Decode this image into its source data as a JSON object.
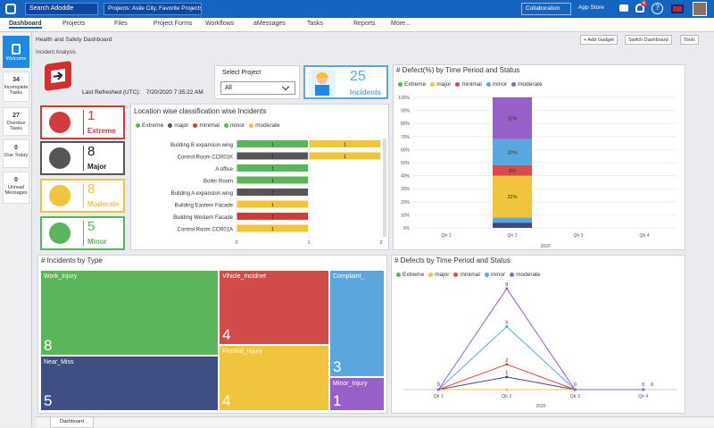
{
  "header": {
    "search_placeholder": "Search Adoddle",
    "projects": "Projects: Asile City, Favorite Projects",
    "collaboration": "Collaboration",
    "app_store": "App Store",
    "notif_count": "4"
  },
  "nav": [
    "Dashboard",
    "Projects",
    "Files",
    "Project Forms",
    "Workflows",
    "aMessages",
    "Tasks",
    "Reports",
    "More..."
  ],
  "sidebar": [
    {
      "num": "",
      "label": "Welcome"
    },
    {
      "num": "34",
      "label": "Incomplete Tasks"
    },
    {
      "num": "27",
      "label": "Overdue Tasks"
    },
    {
      "num": "0",
      "label": "Due Today"
    },
    {
      "num": "0",
      "label": "Unread Messages"
    }
  ],
  "page": {
    "breadcrumb": "Health and Safety Dashboard",
    "sub": "Incident Analysis",
    "add_gadget": "+ Add Gadget",
    "switch_dashboard": "Switch Dashboard",
    "tools": "Tools",
    "footer_tab": "Dashboard"
  },
  "refresh": {
    "label": "Last Refreshed (UTC):",
    "value": "7/20/2020 7:35:22 AM"
  },
  "select_project": {
    "label": "Select Project",
    "value": "All"
  },
  "incidents_count": {
    "value": "25",
    "label": "Incidents"
  },
  "kpis": [
    {
      "value": "1",
      "label": "Extreme",
      "color": "#d23b3b"
    },
    {
      "value": "8",
      "label": "Major",
      "color": "#555555"
    },
    {
      "value": "8",
      "label": "Moderate",
      "color": "#eec53b"
    },
    {
      "value": "5",
      "label": "Minor",
      "color": "#5bb55a"
    }
  ],
  "severity_colors": {
    "extreme": "#3a4a7a",
    "major": "#f0c43c",
    "minimal": "#d94a4a",
    "minor": "#5aa7e0",
    "moderate": "#9660c8"
  },
  "location_chart": {
    "title": "Location wise classification wise Incidents",
    "legend": [
      "Extreme",
      "major",
      "minimal",
      "minor",
      "moderate"
    ],
    "legend_colors": [
      "#5bb55a",
      "#555555",
      "#d23b3b",
      "#5bb55a",
      "#eec53b"
    ],
    "xticks": [
      "0",
      "1",
      "2"
    ],
    "rows": [
      {
        "label": "Building B expansion wing",
        "segs": [
          {
            "v": 1,
            "c": "#5bb55a"
          },
          {
            "v": 1,
            "c": "#eec53b"
          }
        ]
      },
      {
        "label": "Control Room CCR01K",
        "segs": [
          {
            "v": 1,
            "c": "#555555"
          },
          {
            "v": 1,
            "c": "#eec53b"
          }
        ]
      },
      {
        "label": "A office",
        "segs": [
          {
            "v": 1,
            "c": "#5bb55a"
          }
        ]
      },
      {
        "label": "Boiler Room",
        "segs": [
          {
            "v": 1,
            "c": "#5bb55a"
          }
        ]
      },
      {
        "label": "Building A expansion wing",
        "segs": [
          {
            "v": 1,
            "c": "#555555"
          }
        ]
      },
      {
        "label": "Building Eastern Facade",
        "segs": [
          {
            "v": 1,
            "c": "#eec53b"
          }
        ]
      },
      {
        "label": "Building Western Facade",
        "segs": [
          {
            "v": 1,
            "c": "#d23b3b"
          }
        ]
      },
      {
        "label": "Control Room CCR01A",
        "segs": [
          {
            "v": 1,
            "c": "#eec53b"
          }
        ]
      }
    ]
  },
  "defect_pct": {
    "title": "# Defect(%) by Time Period and Status",
    "legend": [
      "Extreme",
      "major",
      "minimal",
      "minor",
      "moderate"
    ],
    "yticks": [
      "100%",
      "90%",
      "80%",
      "70%",
      "60%",
      "50%",
      "40%",
      "30%",
      "20%",
      "10%",
      "0%"
    ],
    "xcats": [
      "Qtr 1",
      "Qtr 2",
      "Qtr 3",
      "Qtr 4"
    ],
    "year": "2020",
    "stack": [
      {
        "v": 4,
        "c": "#3a4a7a",
        "t": ""
      },
      {
        "v": 4,
        "c": "#5aa7e0",
        "t": ""
      },
      {
        "v": 32,
        "c": "#f0c43c",
        "t": "32%"
      },
      {
        "v": 8,
        "c": "#d94a4a",
        "t": "8%"
      },
      {
        "v": 20,
        "c": "#5aa7e0",
        "t": "20%"
      },
      {
        "v": 32,
        "c": "#9660c8",
        "t": "32%"
      }
    ]
  },
  "treemap": {
    "title": "# Incidents by Type",
    "items": [
      {
        "name": "Work_Injury",
        "value": "8",
        "color": "#5bb55a"
      },
      {
        "name": "Near_Miss",
        "value": "5",
        "color": "#3f4f86"
      },
      {
        "name": "Vihicle_Incidnet",
        "value": "4",
        "color": "#d24b4b"
      },
      {
        "name": "FirstAid_Injury",
        "value": "4",
        "color": "#f0c43c"
      },
      {
        "name": "Complaint_",
        "value": "3",
        "color": "#5aa7e0"
      },
      {
        "name": "Minor_Injury",
        "value": "1",
        "color": "#9660c8"
      }
    ]
  },
  "chart_data": {
    "type": "line",
    "title": "# Defects by Time Period and Status",
    "legend": [
      "Extreme",
      "major",
      "minimal",
      "minor",
      "moderate"
    ],
    "categories": [
      "Qtr 1",
      "Qtr 2",
      "Qtr 3",
      "Qtr 4"
    ],
    "xlabel": "2020",
    "series": [
      {
        "name": "Extreme",
        "color": "#3a4a7a",
        "values": [
          0,
          1,
          0,
          0
        ]
      },
      {
        "name": "major",
        "color": "#f0c43c",
        "values": [
          0,
          0,
          0,
          0
        ]
      },
      {
        "name": "minimal",
        "color": "#d94a4a",
        "values": [
          0,
          2,
          0,
          0
        ]
      },
      {
        "name": "minor",
        "color": "#5aa7e0",
        "values": [
          0,
          5,
          0,
          0
        ]
      },
      {
        "name": "moderate",
        "color": "#9660c8",
        "values": [
          0,
          8,
          0,
          0
        ]
      }
    ],
    "labels": [
      {
        "x": 1,
        "v": "1"
      },
      {
        "x": 1,
        "v": "2"
      },
      {
        "x": 1,
        "v": "5"
      },
      {
        "x": 1,
        "v": "8"
      },
      {
        "x": 0,
        "v": "0"
      },
      {
        "x": 2,
        "v": "0"
      },
      {
        "x": 3,
        "v": "0"
      },
      {
        "x": 3,
        "v": "0"
      }
    ]
  }
}
